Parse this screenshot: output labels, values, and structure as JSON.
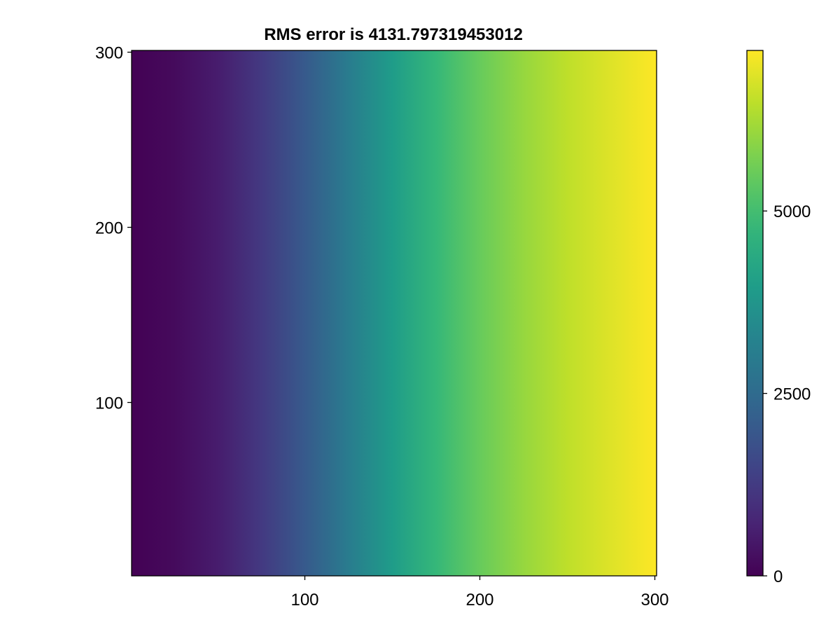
{
  "chart_data": {
    "type": "heatmap",
    "title": "RMS error is 4131.797319453012",
    "xlabel": "",
    "ylabel": "",
    "xlim": [
      1,
      301
    ],
    "ylim": [
      1,
      301
    ],
    "x_ticks": [
      100,
      200,
      300
    ],
    "y_ticks": [
      100,
      200,
      300
    ],
    "grid": false,
    "field": {
      "description": "value varies along x only, constant along y",
      "x": [
        1,
        25,
        50,
        75,
        100,
        125,
        150,
        175,
        200,
        225,
        250,
        275,
        301
      ],
      "values_along_x": [
        0,
        180,
        560,
        1200,
        2050,
        3000,
        3950,
        4800,
        5500,
        6050,
        6500,
        6850,
        7200
      ]
    },
    "colorbar": {
      "colormap": "viridis",
      "range": [
        0,
        7200
      ],
      "ticks": [
        0,
        2500,
        5000
      ],
      "tick_labels": [
        "0",
        "2500",
        "5000"
      ],
      "placement": "right"
    }
  }
}
